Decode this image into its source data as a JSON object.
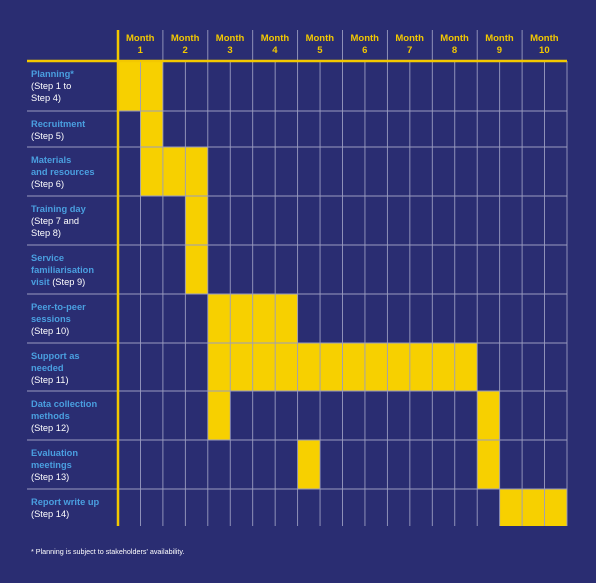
{
  "chart_data": {
    "type": "gantt",
    "months": [
      {
        "label": "Month",
        "number": "1"
      },
      {
        "label": "Month",
        "number": "2"
      },
      {
        "label": "Month",
        "number": "3"
      },
      {
        "label": "Month",
        "number": "4"
      },
      {
        "label": "Month",
        "number": "5"
      },
      {
        "label": "Month",
        "number": "6"
      },
      {
        "label": "Month",
        "number": "7"
      },
      {
        "label": "Month",
        "number": "8"
      },
      {
        "label": "Month",
        "number": "9"
      },
      {
        "label": "Month",
        "number": "10"
      }
    ],
    "tasks": [
      {
        "name": "Planning*",
        "step": "(Step 1 to\nStep 4)",
        "periods": [
          [
            1,
            2
          ]
        ]
      },
      {
        "name": "Recruitment",
        "step": "(Step 5)",
        "periods": [
          [
            1.5,
            2
          ]
        ]
      },
      {
        "name": "Materials\nand resources",
        "step": "(Step 6)",
        "periods": [
          [
            1.5,
            3
          ]
        ]
      },
      {
        "name": "Training day",
        "step": "(Step 7 and\nStep 8)",
        "periods": [
          [
            2.5,
            3
          ]
        ]
      },
      {
        "name": "Service\nfamiliarisation\nvisit",
        "step": "(Step 9)",
        "periods": [
          [
            2.5,
            3
          ]
        ]
      },
      {
        "name": "Peer-to-peer\nsessions",
        "step": "(Step 10)",
        "periods": [
          [
            3,
            5
          ]
        ]
      },
      {
        "name": "Support as\nneeded",
        "step": "(Step 11)",
        "periods": [
          [
            3,
            9
          ]
        ]
      },
      {
        "name": "Data collection\nmethods",
        "step": "(Step 12)",
        "periods": [
          [
            3,
            3.5
          ],
          [
            9,
            9.5
          ]
        ]
      },
      {
        "name": "Evaluation\nmeetings",
        "step": "(Step 13)",
        "periods": [
          [
            5,
            5.5
          ],
          [
            9,
            9.5
          ]
        ]
      },
      {
        "name": "Report write up",
        "step": "(Step 14)",
        "periods": [
          [
            9.5,
            11
          ]
        ]
      }
    ],
    "footnote": "* Planning is subject to stakeholders' availability.",
    "colors": {
      "background": "#2a2d72",
      "bar": "#f7d000",
      "header_text": "#f3c800",
      "task_name": "#4a9fe0",
      "step_text": "#ffffff",
      "grid": "#9a9cc0",
      "axis": "#f3c800"
    }
  }
}
